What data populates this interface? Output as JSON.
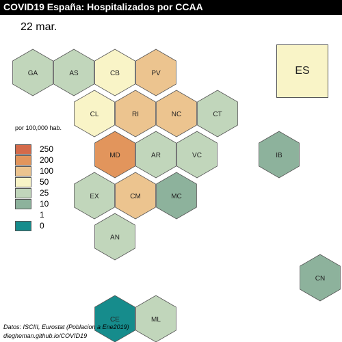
{
  "title": "COVID19 España: Hospitalizados por CCAA",
  "date": "22 mar.",
  "national": {
    "label": "ES",
    "color": "#f9f4c7"
  },
  "legend": {
    "title": "por 100,000 hab.",
    "items": [
      {
        "label": "250",
        "color": "#d46a4a"
      },
      {
        "label": "200",
        "color": "#e2955c"
      },
      {
        "label": "100",
        "color": "#ecc48f"
      },
      {
        "label": "50",
        "color": "#f9f4c7"
      },
      {
        "label": "25",
        "color": "#c1d6bb"
      },
      {
        "label": "10",
        "color": "#8db29c"
      },
      {
        "label": "1",
        "color": "#ffffff"
      },
      {
        "label": "0",
        "color": "#168c8c"
      }
    ]
  },
  "regions": [
    {
      "code": "GA",
      "col": 0,
      "row": 0,
      "color": "#c1d6bb"
    },
    {
      "code": "AS",
      "col": 1,
      "row": 0,
      "color": "#c1d6bb"
    },
    {
      "code": "CB",
      "col": 2,
      "row": 0,
      "color": "#f9f4c7"
    },
    {
      "code": "PV",
      "col": 3,
      "row": 0,
      "color": "#ecc48f"
    },
    {
      "code": "CL",
      "col": 1.5,
      "row": 1,
      "color": "#f9f4c7"
    },
    {
      "code": "RI",
      "col": 2.5,
      "row": 1,
      "color": "#ecc48f"
    },
    {
      "code": "NC",
      "col": 3.5,
      "row": 1,
      "color": "#ecc48f"
    },
    {
      "code": "CT",
      "col": 4.5,
      "row": 1,
      "color": "#c1d6bb"
    },
    {
      "code": "MD",
      "col": 2,
      "row": 2,
      "color": "#e2955c"
    },
    {
      "code": "AR",
      "col": 3,
      "row": 2,
      "color": "#c1d6bb"
    },
    {
      "code": "VC",
      "col": 4,
      "row": 2,
      "color": "#c1d6bb"
    },
    {
      "code": "IB",
      "col": 6,
      "row": 2,
      "color": "#8db29c"
    },
    {
      "code": "EX",
      "col": 1.5,
      "row": 3,
      "color": "#c1d6bb"
    },
    {
      "code": "CM",
      "col": 2.5,
      "row": 3,
      "color": "#ecc48f"
    },
    {
      "code": "MC",
      "col": 3.5,
      "row": 3,
      "color": "#8db29c"
    },
    {
      "code": "AN",
      "col": 2,
      "row": 4,
      "color": "#c1d6bb"
    },
    {
      "code": "CN",
      "col": 7,
      "row": 5,
      "color": "#8db29c"
    },
    {
      "code": "CE",
      "col": 2,
      "row": 6,
      "color": "#168c8c"
    },
    {
      "code": "ML",
      "col": 3,
      "row": 6,
      "color": "#c1d6bb"
    }
  ],
  "footer": {
    "source": "Datos: ISCIII, Eurostat (Poblacion a Ene2019)",
    "url": "diegheman.github.io/COVID19"
  }
}
